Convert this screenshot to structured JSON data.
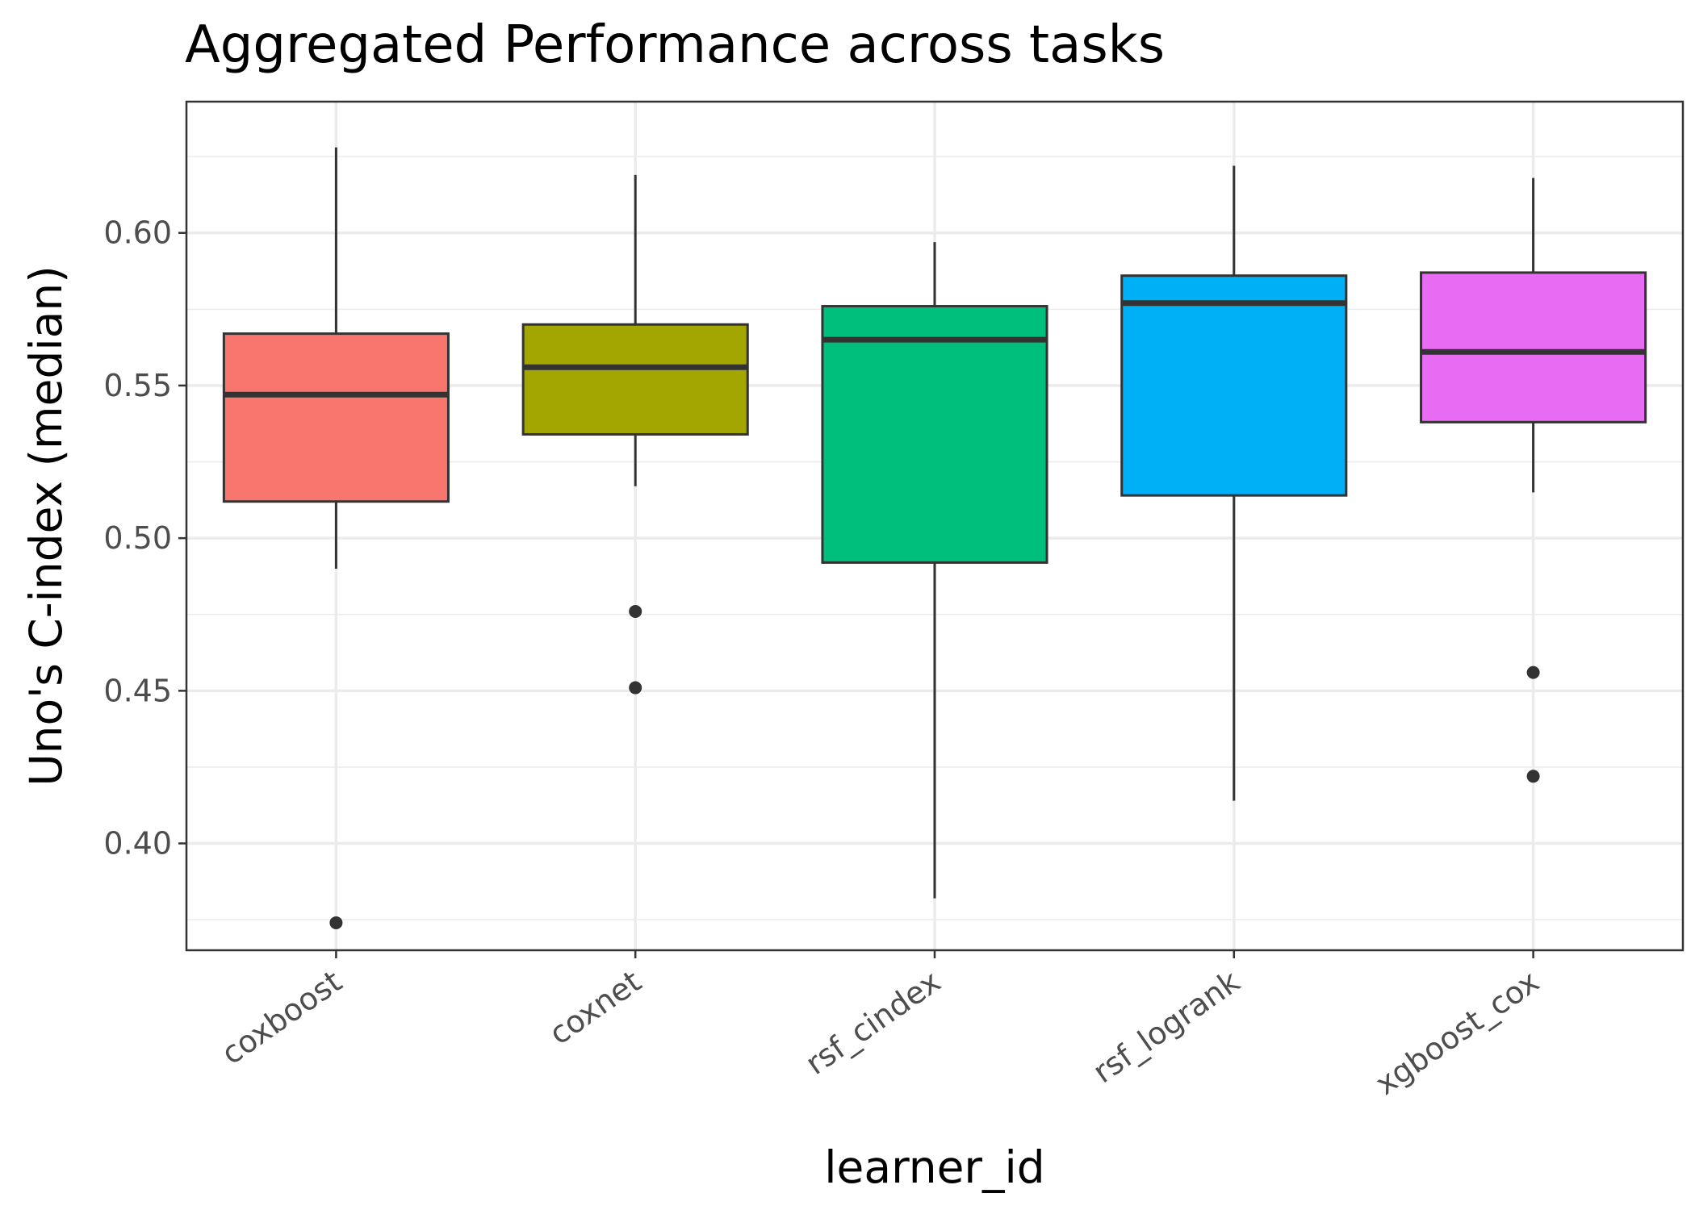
{
  "chart_data": {
    "type": "boxplot",
    "title": "Aggregated Performance across tasks",
    "xlabel": "learner_id",
    "ylabel": "Uno's C-index (median)",
    "ylim": [
      0.365,
      0.643
    ],
    "yticks": [
      0.4,
      0.45,
      0.5,
      0.55,
      0.6
    ],
    "ytick_labels": [
      "0.40",
      "0.45",
      "0.50",
      "0.55",
      "0.60"
    ],
    "grid": true,
    "legend": "none",
    "categories": [
      "coxboost",
      "coxnet",
      "rsf_cindex",
      "rsf_logrank",
      "xgboost_cox"
    ],
    "boxes": [
      {
        "category": "coxboost",
        "whisker_low": 0.49,
        "q1": 0.512,
        "median": 0.547,
        "q3": 0.567,
        "whisker_high": 0.628,
        "outliers": [
          0.374
        ],
        "color": "#F8766D"
      },
      {
        "category": "coxnet",
        "whisker_low": 0.517,
        "q1": 0.534,
        "median": 0.556,
        "q3": 0.57,
        "whisker_high": 0.619,
        "outliers": [
          0.476,
          0.451
        ],
        "color": "#A3A500"
      },
      {
        "category": "rsf_cindex",
        "whisker_low": 0.382,
        "q1": 0.492,
        "median": 0.565,
        "q3": 0.576,
        "whisker_high": 0.597,
        "outliers": [],
        "color": "#00BF7D"
      },
      {
        "category": "rsf_logrank",
        "whisker_low": 0.414,
        "q1": 0.514,
        "median": 0.577,
        "q3": 0.586,
        "whisker_high": 0.622,
        "outliers": [],
        "color": "#00B0F6"
      },
      {
        "category": "xgboost_cox",
        "whisker_low": 0.515,
        "q1": 0.538,
        "median": 0.561,
        "q3": 0.587,
        "whisker_high": 0.618,
        "outliers": [
          0.456,
          0.422
        ],
        "color": "#E76BF3"
      }
    ]
  }
}
